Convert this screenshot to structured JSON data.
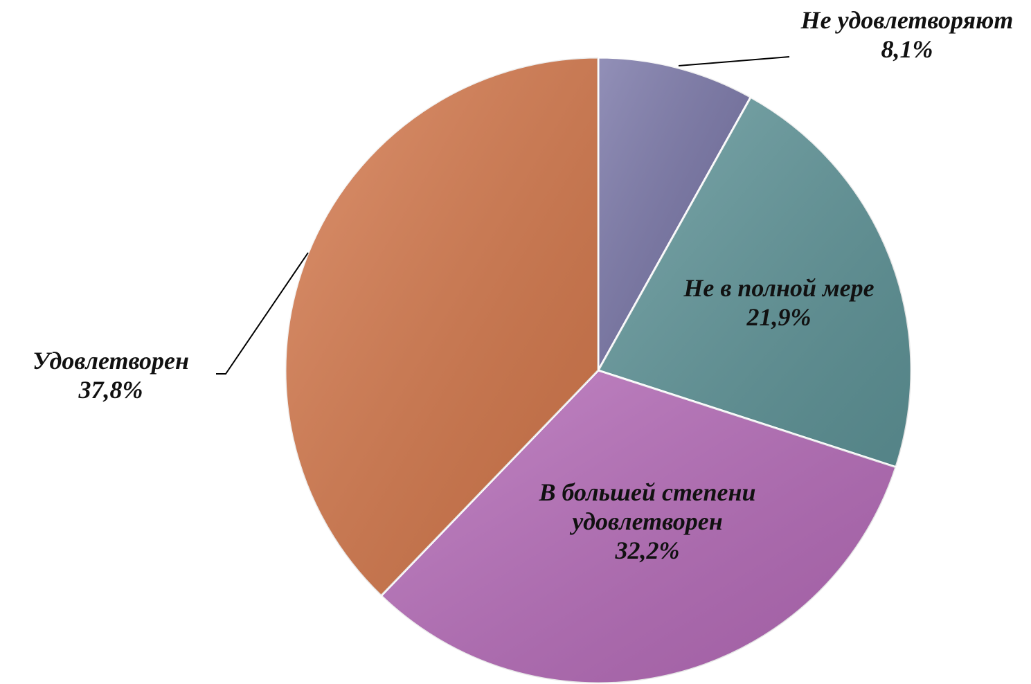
{
  "chart_data": {
    "type": "pie",
    "categories": [
      "Не удовлетворяют",
      "Не в полной мере",
      "В большей степени удовлетворен",
      "Удовлетворен"
    ],
    "values": [
      8.1,
      21.9,
      32.2,
      37.8
    ],
    "value_labels": [
      "8,1%",
      "21,9%",
      "32,2%",
      "37,8%"
    ],
    "colors": [
      "#7774a6",
      "#5f9599",
      "#b66bb9",
      "#d5784b"
    ]
  }
}
